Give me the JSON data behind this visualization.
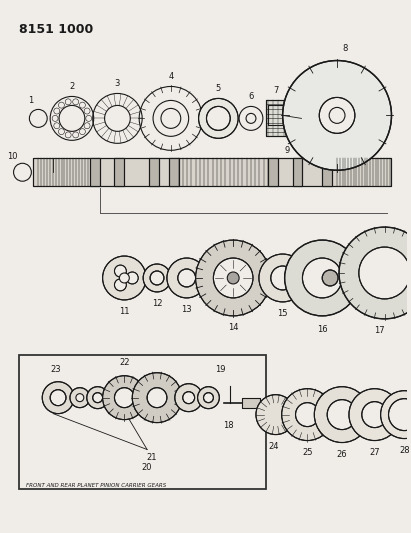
{
  "title": "8151 1000",
  "bg_color": "#f0ede8",
  "line_color": "#1a1a1a",
  "box_label": "FRONT AND REAR PLANET PINION CARRIER GEARS",
  "fig_w": 4.11,
  "fig_h": 5.33,
  "dpi": 100
}
